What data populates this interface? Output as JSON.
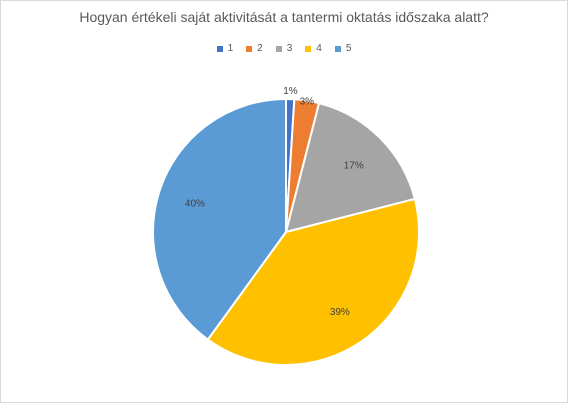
{
  "chart_data": {
    "type": "pie",
    "title": "Hogyan értékeli saját aktivitását a tantermi oktatás időszaka alatt?",
    "categories": [
      "1",
      "2",
      "3",
      "4",
      "5"
    ],
    "values": [
      1,
      3,
      17,
      39,
      40
    ],
    "data_labels": [
      "1%",
      "3%",
      "17%",
      "39%",
      "40%"
    ],
    "colors": [
      "#4472C4",
      "#ED7D31",
      "#A5A5A5",
      "#FFC000",
      "#5B9BD5"
    ],
    "legend_position": "top",
    "start_angle": "12 o'clock",
    "direction": "clockwise"
  }
}
